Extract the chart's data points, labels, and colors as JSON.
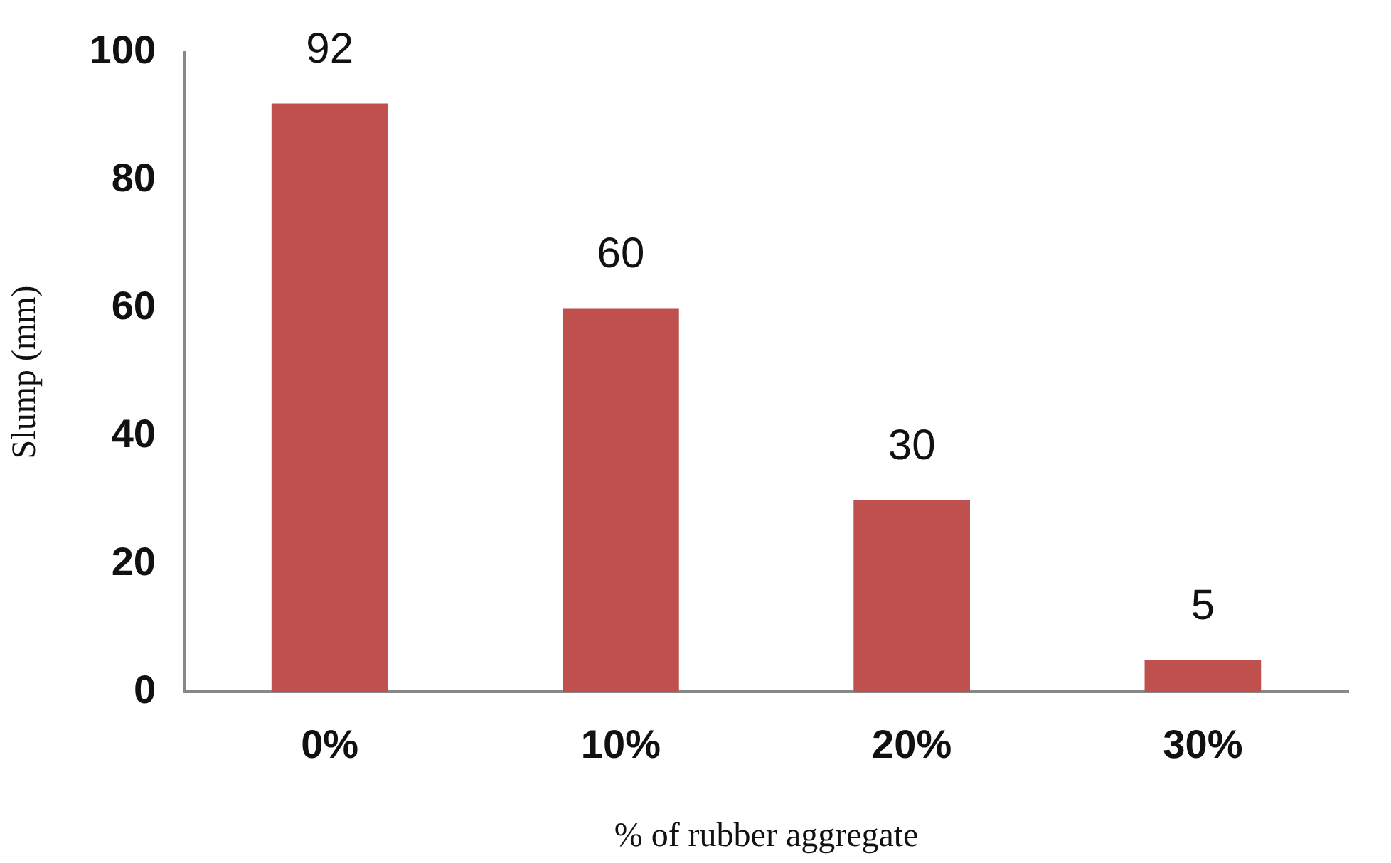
{
  "chart_data": {
    "type": "bar",
    "xlabel": "% of rubber aggregate",
    "ylabel": "Slump (mm)",
    "categories": [
      "0%",
      "10%",
      "20%",
      "30%"
    ],
    "values": [
      92,
      60,
      30,
      5
    ],
    "color": "#c0504d",
    "ylim": [
      0,
      100
    ],
    "yticks": [
      0,
      20,
      40,
      60,
      80,
      100
    ],
    "grid": false,
    "legend": false,
    "data_labels": true
  }
}
